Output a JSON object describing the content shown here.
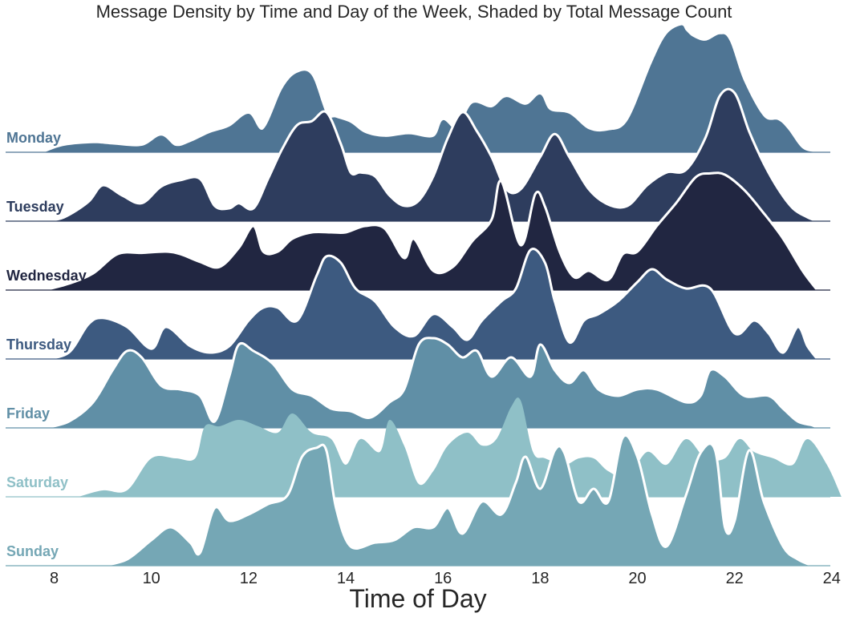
{
  "chart_data": {
    "type": "area",
    "title": "Message Density by Time and Day of the Week, Shaded by Total Message Count",
    "xlabel": "Time of Day",
    "ylabel": "",
    "xlim": [
      7,
      24.3
    ],
    "xticks": [
      8,
      10,
      12,
      14,
      16,
      18,
      20,
      22,
      24
    ],
    "grid": false,
    "series": [
      {
        "name": "Monday",
        "color": "#4f7594",
        "x": [
          7.8,
          8.2,
          8.8,
          9.2,
          9.8,
          10.2,
          10.5,
          10.8,
          11.2,
          11.6,
          12.0,
          12.3,
          12.7,
          13.0,
          13.3,
          13.6,
          13.8,
          14.1,
          14.4,
          14.8,
          15.3,
          15.8,
          16.0,
          16.3,
          16.6,
          17.0,
          17.3,
          17.7,
          18.0,
          18.2,
          18.6,
          19.0,
          19.4,
          19.8,
          20.3,
          20.6,
          20.9,
          21.0,
          21.15,
          21.4,
          21.7,
          21.9,
          22.2,
          22.6,
          22.9,
          23.1,
          23.4,
          23.7
        ],
        "y": [
          0,
          0.05,
          0.07,
          0.06,
          0.05,
          0.13,
          0.05,
          0.08,
          0.15,
          0.2,
          0.3,
          0.18,
          0.5,
          0.62,
          0.6,
          0.3,
          0.27,
          0.23,
          0.15,
          0.12,
          0.14,
          0.12,
          0.25,
          0.18,
          0.38,
          0.35,
          0.43,
          0.37,
          0.45,
          0.33,
          0.3,
          0.18,
          0.17,
          0.25,
          0.7,
          0.92,
          0.99,
          0.95,
          0.9,
          0.87,
          0.92,
          0.87,
          0.55,
          0.28,
          0.25,
          0.18,
          0.03,
          0
        ],
        "outline": false
      },
      {
        "name": "Tuesday",
        "color": "#2e3d5e",
        "x": [
          7.8,
          8.2,
          8.7,
          9.0,
          9.4,
          9.8,
          10.2,
          10.6,
          11.0,
          11.3,
          11.6,
          11.8,
          12.1,
          12.4,
          12.7,
          13.0,
          13.3,
          13.6,
          13.9,
          14.1,
          14.3,
          14.6,
          14.9,
          15.2,
          15.5,
          15.8,
          16.1,
          16.4,
          16.7,
          17.0,
          17.3,
          17.6,
          18.0,
          18.3,
          18.6,
          19.0,
          19.4,
          19.8,
          20.2,
          20.6,
          21.0,
          21.4,
          21.7,
          22.0,
          22.3,
          22.6,
          22.9,
          23.2,
          23.5,
          23.7
        ],
        "y": [
          0,
          0.03,
          0.15,
          0.28,
          0.2,
          0.14,
          0.27,
          0.32,
          0.33,
          0.12,
          0.1,
          0.14,
          0.1,
          0.33,
          0.57,
          0.75,
          0.78,
          0.85,
          0.6,
          0.38,
          0.38,
          0.35,
          0.2,
          0.12,
          0.16,
          0.35,
          0.65,
          0.85,
          0.7,
          0.5,
          0.25,
          0.25,
          0.5,
          0.68,
          0.5,
          0.25,
          0.13,
          0.12,
          0.28,
          0.38,
          0.4,
          0.65,
          0.98,
          1.0,
          0.7,
          0.45,
          0.25,
          0.1,
          0.03,
          0
        ],
        "outline": true
      },
      {
        "name": "Wednesday",
        "color": "#212641",
        "x": [
          7.8,
          8.3,
          8.8,
          9.3,
          9.8,
          10.3,
          10.6,
          11.0,
          11.4,
          11.8,
          12.1,
          12.3,
          12.6,
          12.9,
          13.3,
          13.7,
          14.0,
          14.4,
          14.8,
          15.2,
          15.4,
          15.8,
          16.2,
          16.6,
          17.0,
          17.2,
          17.6,
          17.9,
          18.1,
          18.4,
          18.7,
          19.0,
          19.4,
          19.7,
          20.0,
          20.4,
          20.8,
          21.2,
          21.5,
          21.8,
          22.2,
          22.6,
          23.0,
          23.4,
          23.7
        ],
        "y": [
          0,
          0.05,
          0.13,
          0.28,
          0.29,
          0.3,
          0.28,
          0.22,
          0.18,
          0.33,
          0.5,
          0.3,
          0.3,
          0.4,
          0.45,
          0.45,
          0.45,
          0.5,
          0.48,
          0.25,
          0.4,
          0.15,
          0.18,
          0.38,
          0.55,
          0.85,
          0.35,
          0.75,
          0.65,
          0.3,
          0.1,
          0.15,
          0.08,
          0.28,
          0.3,
          0.5,
          0.68,
          0.88,
          0.91,
          0.9,
          0.78,
          0.6,
          0.4,
          0.15,
          0
        ],
        "outline": true
      },
      {
        "name": "Thursday",
        "color": "#3d5a80",
        "x": [
          7.8,
          8.3,
          8.7,
          9.0,
          9.5,
          10.0,
          10.3,
          10.8,
          11.2,
          11.6,
          12.0,
          12.3,
          12.6,
          13.0,
          13.4,
          13.6,
          13.9,
          14.2,
          14.6,
          15.0,
          15.4,
          15.8,
          16.2,
          16.5,
          16.8,
          17.2,
          17.5,
          17.8,
          18.1,
          18.3,
          18.6,
          18.9,
          19.2,
          19.6,
          20.0,
          20.3,
          20.6,
          21.0,
          21.5,
          22.0,
          22.4,
          22.7,
          23.0,
          23.3,
          23.5,
          23.7
        ],
        "y": [
          0,
          0.05,
          0.27,
          0.32,
          0.25,
          0.08,
          0.25,
          0.1,
          0.05,
          0.1,
          0.3,
          0.4,
          0.4,
          0.3,
          0.65,
          0.8,
          0.75,
          0.55,
          0.45,
          0.25,
          0.18,
          0.35,
          0.25,
          0.15,
          0.3,
          0.45,
          0.55,
          0.85,
          0.75,
          0.45,
          0.13,
          0.3,
          0.35,
          0.45,
          0.6,
          0.7,
          0.62,
          0.55,
          0.55,
          0.2,
          0.3,
          0.2,
          0.05,
          0.25,
          0.1,
          0
        ],
        "outline": true
      },
      {
        "name": "Friday",
        "color": "#608fa6",
        "x": [
          7.8,
          8.3,
          8.8,
          9.2,
          9.5,
          9.8,
          10.2,
          10.6,
          11.0,
          11.3,
          11.6,
          11.8,
          12.1,
          12.5,
          12.9,
          13.3,
          13.7,
          14.1,
          14.5,
          14.9,
          15.2,
          15.5,
          15.8,
          16.1,
          16.4,
          16.7,
          17.0,
          17.4,
          17.8,
          18.0,
          18.3,
          18.6,
          18.9,
          19.2,
          19.6,
          20.0,
          20.4,
          21.0,
          21.3,
          21.5,
          21.8,
          22.2,
          22.7,
          23.0,
          23.3,
          23.6,
          23.7
        ],
        "y": [
          0,
          0.05,
          0.2,
          0.45,
          0.6,
          0.55,
          0.33,
          0.3,
          0.25,
          0.05,
          0.4,
          0.65,
          0.6,
          0.5,
          0.3,
          0.25,
          0.15,
          0.13,
          0.08,
          0.2,
          0.3,
          0.65,
          0.7,
          0.65,
          0.55,
          0.6,
          0.4,
          0.55,
          0.4,
          0.65,
          0.45,
          0.35,
          0.45,
          0.3,
          0.25,
          0.3,
          0.3,
          0.2,
          0.25,
          0.45,
          0.4,
          0.25,
          0.25,
          0.15,
          0.05,
          0.02,
          0
        ],
        "outline": true
      },
      {
        "name": "Saturday",
        "color": "#8fc0c7",
        "x": [
          8.5,
          9.0,
          9.5,
          10.0,
          10.5,
          10.9,
          11.1,
          11.4,
          11.8,
          12.2,
          12.6,
          12.9,
          13.3,
          13.7,
          14.0,
          14.3,
          14.7,
          14.9,
          15.2,
          15.5,
          15.8,
          16.1,
          16.5,
          16.8,
          17.1,
          17.4,
          17.6,
          17.85,
          18.1,
          18.5,
          18.8,
          19.1,
          19.4,
          19.8,
          20.2,
          20.6,
          21.0,
          21.4,
          21.8,
          22.1,
          22.4,
          22.8,
          23.2,
          23.5,
          23.9,
          24.2
        ],
        "y": [
          0,
          0.05,
          0.05,
          0.3,
          0.3,
          0.3,
          0.55,
          0.55,
          0.6,
          0.55,
          0.5,
          0.65,
          0.5,
          0.45,
          0.25,
          0.45,
          0.35,
          0.6,
          0.4,
          0.1,
          0.2,
          0.4,
          0.5,
          0.4,
          0.45,
          0.7,
          0.75,
          0.35,
          0.3,
          0.25,
          0.3,
          0.3,
          0.2,
          0.15,
          0.35,
          0.25,
          0.45,
          0.3,
          0.3,
          0.45,
          0.35,
          0.3,
          0.25,
          0.45,
          0.25,
          0
        ],
        "outline": false
      },
      {
        "name": "Sunday",
        "color": "#75a7b5",
        "x": [
          9.0,
          9.5,
          10.0,
          10.4,
          10.8,
          11.0,
          11.3,
          11.6,
          12.0,
          12.4,
          12.8,
          13.1,
          13.4,
          13.6,
          13.8,
          14.1,
          14.6,
          15.0,
          15.4,
          15.8,
          16.1,
          16.4,
          16.8,
          17.2,
          17.5,
          17.7,
          18.0,
          18.3,
          18.5,
          18.8,
          19.1,
          19.4,
          19.7,
          20.0,
          20.3,
          20.6,
          21.0,
          21.3,
          21.6,
          21.8,
          22.0,
          22.3,
          22.6,
          23.0,
          23.3,
          23.6
        ],
        "y": [
          0,
          0.05,
          0.2,
          0.3,
          0.18,
          0.1,
          0.45,
          0.35,
          0.4,
          0.48,
          0.55,
          0.85,
          0.92,
          0.9,
          0.45,
          0.15,
          0.18,
          0.2,
          0.3,
          0.3,
          0.45,
          0.25,
          0.5,
          0.4,
          0.65,
          0.85,
          0.6,
          0.9,
          0.88,
          0.5,
          0.6,
          0.5,
          1.0,
          0.85,
          0.4,
          0.15,
          0.55,
          0.88,
          0.9,
          0.3,
          0.35,
          0.9,
          0.5,
          0.15,
          0.05,
          0
        ],
        "outline": true
      }
    ]
  }
}
